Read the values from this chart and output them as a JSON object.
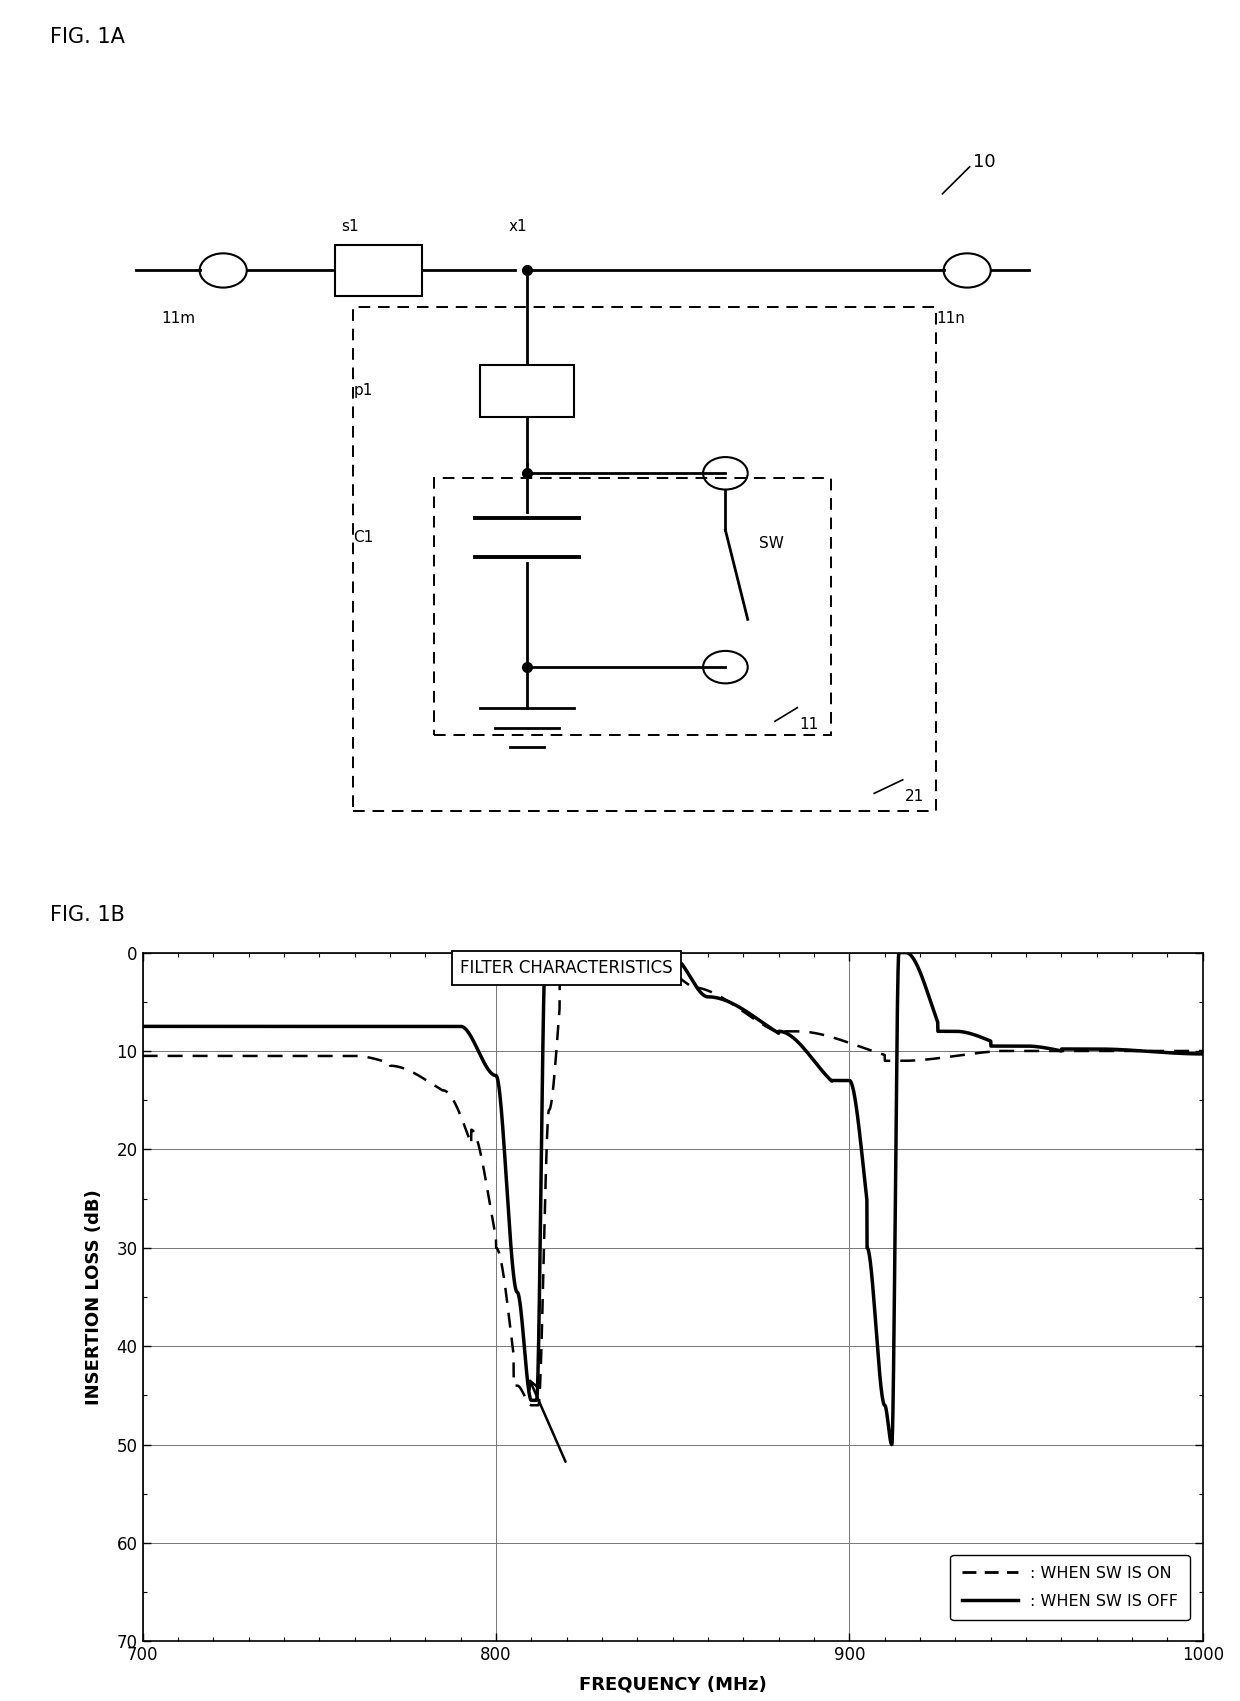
{
  "fig1a_label": "FIG. 1A",
  "fig1b_label": "FIG. 1B",
  "label_10": "10",
  "label_11m": "11m",
  "label_11n": "11n",
  "label_s1": "s1",
  "label_x1": "x1",
  "label_p1": "p1",
  "label_c1": "C1",
  "label_sw": "SW",
  "label_11": "11",
  "label_21": "21",
  "chart_title": "FILTER CHARACTERISTICS",
  "xlabel": "FREQUENCY (MHz)",
  "ylabel": "INSERTION LOSS (dB)",
  "xlim": [
    700,
    1000
  ],
  "ylim": [
    70,
    0
  ],
  "xticks": [
    700,
    800,
    900,
    1000
  ],
  "yticks": [
    0,
    10,
    20,
    30,
    40,
    50,
    60,
    70
  ],
  "legend_sw_on": ": WHEN SW IS ON",
  "legend_sw_off": ": WHEN SW IS OFF",
  "bg_color": "#ffffff",
  "line_color": "#000000"
}
